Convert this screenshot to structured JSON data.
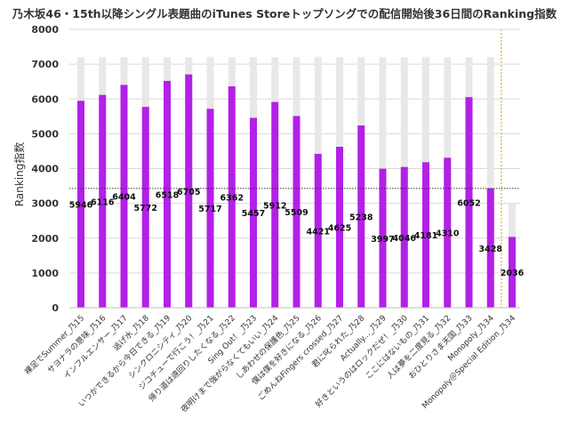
{
  "chart_data": {
    "type": "bar",
    "title": "乃木坂46・15th以降シングル表題曲のiTunes Storeトップソングでの配信開始後36日間のRanking指数",
    "ylabel": "Ranking指数",
    "xlabel": "",
    "ylim": [
      0,
      8000
    ],
    "yticks": [
      "0",
      "1000",
      "2000",
      "3000",
      "4000",
      "5000",
      "6000",
      "7000",
      "8000"
    ],
    "grid": true,
    "legend": "none",
    "categories": [
      "裸足でSummer_乃15",
      "サヨナラの意味_乃16",
      "インフルエンサー_乃17",
      "逃げ水_乃18",
      "いつかできるから今日できる_乃19",
      "シンクロニシティ_乃20",
      "ジコチューで行こう！_乃21",
      "帰り道は遠回りしたくなる_乃22",
      "Sing Out！_乃23",
      "夜明けまで強がらなくてもいい_乃24",
      "しあわせの保護色_乃25",
      "僕は僕を好きになる_乃26",
      "ごめんねFingers crossed_乃27",
      "君に叱られた_乃28",
      "Actually..._乃29",
      "好きというのはロックだぜ！_乃30",
      "ここにはないもの_乃31",
      "人は夢を二度見る_乃32",
      "おひとりさま天国_乃33",
      "Monopoly_乃34",
      "Monopoly＠Special Edition_乃34"
    ],
    "series": [
      {
        "name": "",
        "color": "#b320e8",
        "values": [
          5946,
          6116,
          6404,
          5772,
          6518,
          6705,
          5717,
          6362,
          5457,
          5912,
          5509,
          4421,
          4625,
          5238,
          3997,
          4046,
          4181,
          4310,
          6052,
          3428,
          2036
        ]
      },
      {
        "name": "",
        "color": "#e8e8e8",
        "values": [
          7200,
          7200,
          7200,
          7200,
          7200,
          7200,
          7200,
          7200,
          7200,
          7200,
          7200,
          7200,
          7200,
          7200,
          7200,
          7200,
          7200,
          7200,
          7200,
          7200,
          3000
        ]
      }
    ],
    "reference_line": {
      "y": 3428,
      "color": "#333333",
      "style": "dotted"
    },
    "separator_after_index": 19,
    "separator_color": "#d4a000"
  }
}
